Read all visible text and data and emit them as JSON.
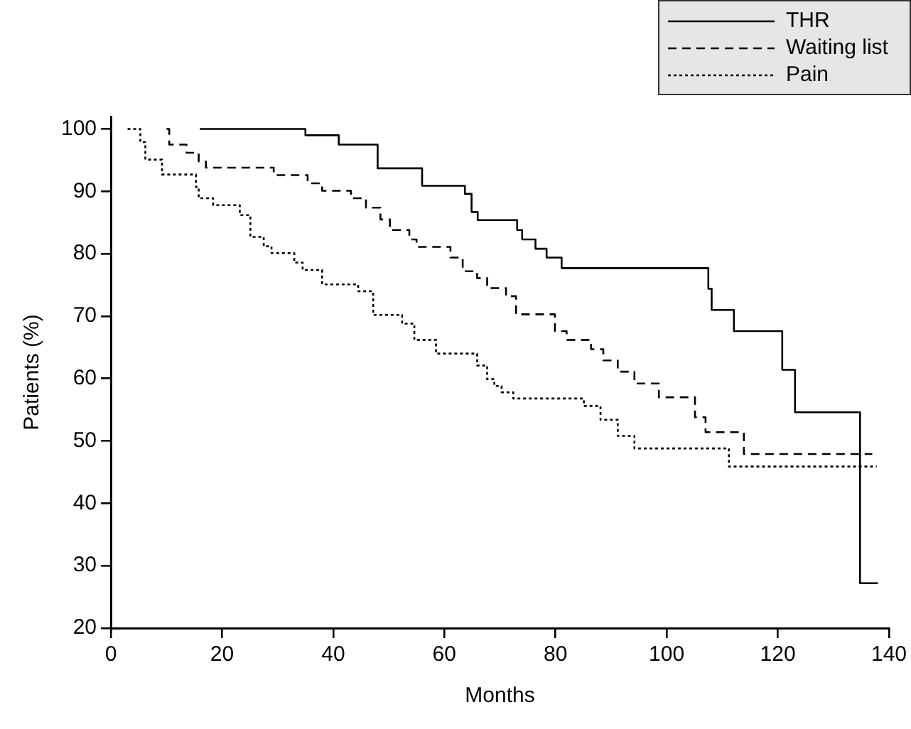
{
  "chart_data": {
    "type": "step",
    "xlabel": "Months",
    "ylabel": "Patients (%)",
    "xlim": [
      0,
      140
    ],
    "xticks": [
      0,
      20,
      40,
      60,
      80,
      100,
      120,
      140
    ],
    "ylim": [
      20,
      102
    ],
    "yticks": [
      20,
      30,
      40,
      50,
      60,
      70,
      80,
      90,
      100
    ],
    "grid": false,
    "legend": "top right",
    "marker": "none",
    "series": [
      {
        "name": "THR",
        "color": "#000000",
        "line_style": "solid",
        "x": [
          16,
          35,
          41,
          48,
          56,
          63.7,
          64.9,
          66,
          73.1,
          74,
          76.4,
          78.4,
          81.1,
          107.5,
          108.1,
          112.1,
          120.8,
          123.1,
          134.8,
          138
        ],
        "values": [
          100,
          99,
          97.5,
          93.7,
          90.9,
          89.6,
          86.7,
          85.4,
          83.8,
          82.3,
          80.8,
          79.4,
          77.7,
          74.4,
          71.0,
          67.6,
          61.4,
          54.6,
          27.2,
          27.2
        ]
      },
      {
        "name": "Waiting list",
        "color": "#000000",
        "line_style": "dashed",
        "x": [
          10,
          10.5,
          13.6,
          15.8,
          17.1,
          29.3,
          35.4,
          38,
          43.2,
          45.9,
          48.5,
          50.2,
          53.7,
          55,
          61.1,
          63.3,
          65.9,
          67.7,
          71.1,
          72.9,
          79.9,
          82,
          86.4,
          88.6,
          91.2,
          94.2,
          98.6,
          105.1,
          107,
          113.9,
          137
        ],
        "values": [
          100,
          97.5,
          96.2,
          94.8,
          93.8,
          92.6,
          91.3,
          90.1,
          88.9,
          87.4,
          85.5,
          83.8,
          82.3,
          81.1,
          79.4,
          77.2,
          76.1,
          74.5,
          73.2,
          70.3,
          67.6,
          66.2,
          64.7,
          62.9,
          61.1,
          59.2,
          57.0,
          53.8,
          51.4,
          47.9,
          47.9
        ]
      },
      {
        "name": "Pain",
        "color": "#000000",
        "line_style": "dotted",
        "x": [
          3,
          5.3,
          6.2,
          9.2,
          15.3,
          15.8,
          18.4,
          23.2,
          25.1,
          27.5,
          28.9,
          33,
          34.5,
          38,
          44.5,
          47.2,
          52.4,
          54.6,
          58.5,
          65.9,
          67.7,
          69,
          70.3,
          72.4,
          85.1,
          88.1,
          91.2,
          94.2,
          111.2,
          137.8
        ],
        "values": [
          100,
          97.9,
          95.1,
          92.7,
          90.7,
          88.9,
          87.8,
          86.2,
          82.7,
          81.2,
          80.1,
          78.6,
          77.4,
          75.1,
          74,
          70.2,
          68.8,
          66.2,
          64,
          62.1,
          59.9,
          58.8,
          57.8,
          56.8,
          55.6,
          53.4,
          50.8,
          48.8,
          45.9,
          45.9
        ]
      }
    ]
  }
}
